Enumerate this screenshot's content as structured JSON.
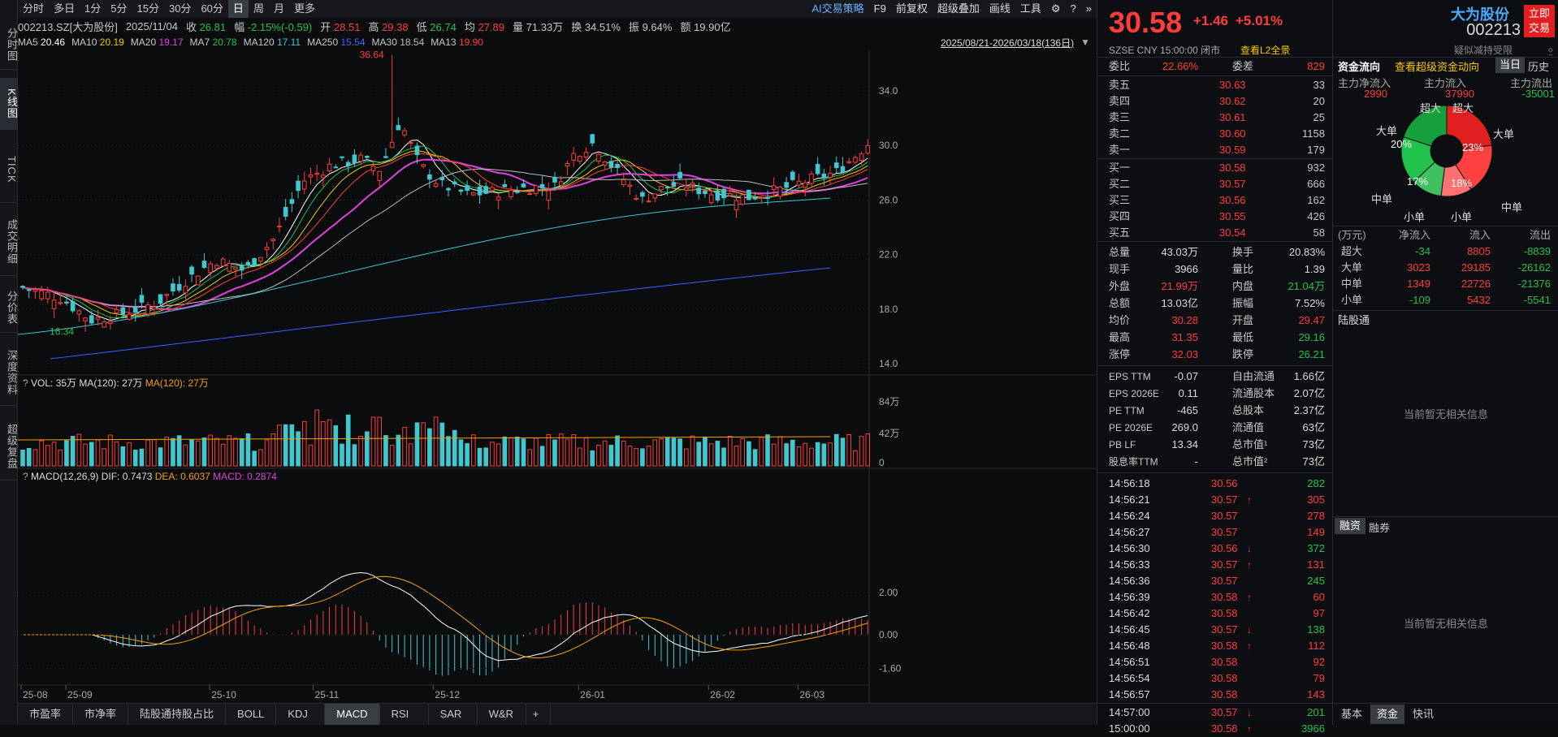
{
  "left_tabs": [
    "分时图",
    "K线图",
    "TICK",
    "成交明细",
    "分价表",
    "深度资料",
    "超级复盘"
  ],
  "periods": [
    "分时",
    "多日",
    "1分",
    "5分",
    "15分",
    "30分",
    "60分",
    "日",
    "周",
    "月",
    "更多"
  ],
  "active_period": "日",
  "tools": [
    "AI交易策略",
    "F9",
    "前复权",
    "超级叠加",
    "画线",
    "工具"
  ],
  "info": {
    "code": "002213.SZ[大为股份]",
    "date": "2025/11/04",
    "close_label": "收",
    "close": "26.81",
    "chg_label": "幅",
    "chg": "-2.15%(-0.59)",
    "open_label": "开",
    "open": "28.51",
    "high_label": "高",
    "high": "29.38",
    "low_label": "低",
    "low": "26.74",
    "avg_label": "均",
    "avg": "27.89",
    "vol_label": "量",
    "vol": "71.33万",
    "turn_label": "换",
    "turn": "34.51%",
    "amp_label": "振",
    "amp": "9.64%",
    "amt_label": "额",
    "amt": "19.90亿"
  },
  "ma_legend": [
    {
      "name": "MA5",
      "value": "20.46",
      "color": "#ffffff"
    },
    {
      "name": "MA10",
      "value": "20.19",
      "color": "#f5c800"
    },
    {
      "name": "MA20",
      "value": "19.17",
      "color": "#e040e0"
    },
    {
      "name": "MA7",
      "value": "20.78",
      "color": "#21c24c"
    },
    {
      "name": "MA120",
      "value": "17.11",
      "color": "#40c8d0"
    },
    {
      "name": "MA250",
      "value": "15.54",
      "color": "#4060ff"
    },
    {
      "name": "MA30",
      "value": "18.54",
      "color": "#bbbbbb"
    },
    {
      "name": "MA13",
      "value": "19.90",
      "color": "#ff3b3b"
    }
  ],
  "range_label": "2025/08/21-2026/03/18(136日)",
  "chart_data": {
    "type": "candlestick",
    "price_ticks": [
      "34.0",
      "30.0",
      "26.0",
      "22.0",
      "18.0",
      "14.0"
    ],
    "high_label": "36.64",
    "low_label": "16.34",
    "date_ticks": [
      "25-08",
      "25-09",
      "25-10",
      "25-11",
      "25-12",
      "26-01",
      "26-02",
      "26-03"
    ],
    "vol_legend": {
      "vol": "VOL: 35万",
      "ma": "MA(120): 27万",
      "ma2": "MA(120): 27万"
    },
    "vol_ticks": [
      "84万",
      "42万",
      "0"
    ],
    "macd_legend": {
      "title": "MACD(12,26,9)",
      "dif": "DIF: 0.7473",
      "dea": "DEA: 0.6037",
      "macd": "MACD: 0.2874"
    },
    "macd_ticks": [
      "2.00",
      "0.00",
      "-1.60"
    ]
  },
  "quote": {
    "price": "30.58",
    "chg": "+1.46",
    "pct": "+5.01%",
    "name": "大为股份",
    "code": "002213",
    "trade_btn": "立即交易",
    "sub": "SZSE  CNY  15:00:00  闭市",
    "l2": "查看L2全景",
    "hint": "疑似减持受限",
    "wb_label": "委比",
    "wb": "22.66%",
    "wc_label": "委差",
    "wc": "829",
    "asks": [
      {
        "l": "卖五",
        "p": "30.63",
        "v": "33"
      },
      {
        "l": "卖四",
        "p": "30.62",
        "v": "20"
      },
      {
        "l": "卖三",
        "p": "30.61",
        "v": "25"
      },
      {
        "l": "卖二",
        "p": "30.60",
        "v": "1158"
      },
      {
        "l": "卖一",
        "p": "30.59",
        "v": "179"
      }
    ],
    "bids": [
      {
        "l": "买一",
        "p": "30.58",
        "v": "932"
      },
      {
        "l": "买二",
        "p": "30.57",
        "v": "666"
      },
      {
        "l": "买三",
        "p": "30.56",
        "v": "162"
      },
      {
        "l": "买四",
        "p": "30.55",
        "v": "426"
      },
      {
        "l": "买五",
        "p": "30.54",
        "v": "58"
      }
    ],
    "stats": [
      {
        "a": "总量",
        "av": "43.03万",
        "b": "换手",
        "bv": "20.83%",
        "ac": "white",
        "bc": "white"
      },
      {
        "a": "现手",
        "av": "3966",
        "b": "量比",
        "bv": "1.39",
        "ac": "white",
        "bc": "white"
      },
      {
        "a": "外盘",
        "av": "21.99万",
        "b": "内盘",
        "bv": "21.04万",
        "ac": "red",
        "bc": "green"
      },
      {
        "a": "总额",
        "av": "13.03亿",
        "b": "振幅",
        "bv": "7.52%",
        "ac": "white",
        "bc": "white"
      },
      {
        "a": "均价",
        "av": "30.28",
        "b": "开盘",
        "bv": "29.47",
        "ac": "red",
        "bc": "red"
      },
      {
        "a": "最高",
        "av": "31.35",
        "b": "最低",
        "bv": "29.16",
        "ac": "red",
        "bc": "green"
      },
      {
        "a": "涨停",
        "av": "32.03",
        "b": "跌停",
        "bv": "26.21",
        "ac": "red",
        "bc": "green"
      }
    ],
    "fund": [
      {
        "a": "EPS TTM",
        "av": "-0.07",
        "b": "自由流通",
        "bv": "1.66亿"
      },
      {
        "a": "EPS 2026E",
        "av": "0.11",
        "b": "流通股本",
        "bv": "2.07亿"
      },
      {
        "a": "PE TTM",
        "av": "-465",
        "b": "总股本",
        "bv": "2.37亿"
      },
      {
        "a": "PE 2026E",
        "av": "269.0",
        "b": "流通值",
        "bv": "63亿"
      },
      {
        "a": "PB LF",
        "av": "13.34",
        "b": "总市值¹",
        "bv": "73亿"
      },
      {
        "a": "股息率TTM",
        "av": "-",
        "b": "总市值²",
        "bv": "73亿"
      }
    ],
    "ticks": [
      {
        "t": "14:56:18",
        "p": "30.56",
        "d": "",
        "v": "282",
        "pc": "red",
        "vc": "green"
      },
      {
        "t": "14:56:21",
        "p": "30.57",
        "d": "↑",
        "v": "305",
        "pc": "red",
        "vc": "red"
      },
      {
        "t": "14:56:24",
        "p": "30.57",
        "d": "",
        "v": "278",
        "pc": "red",
        "vc": "red"
      },
      {
        "t": "14:56:27",
        "p": "30.57",
        "d": "",
        "v": "149",
        "pc": "red",
        "vc": "red"
      },
      {
        "t": "14:56:30",
        "p": "30.56",
        "d": "↓",
        "v": "372",
        "pc": "red",
        "vc": "green"
      },
      {
        "t": "14:56:33",
        "p": "30.57",
        "d": "↑",
        "v": "131",
        "pc": "red",
        "vc": "red"
      },
      {
        "t": "14:56:36",
        "p": "30.57",
        "d": "",
        "v": "245",
        "pc": "red",
        "vc": "green"
      },
      {
        "t": "14:56:39",
        "p": "30.58",
        "d": "↑",
        "v": "60",
        "pc": "red",
        "vc": "red"
      },
      {
        "t": "14:56:42",
        "p": "30.58",
        "d": "",
        "v": "97",
        "pc": "red",
        "vc": "red"
      },
      {
        "t": "14:56:45",
        "p": "30.57",
        "d": "↓",
        "v": "138",
        "pc": "red",
        "vc": "green"
      },
      {
        "t": "14:56:48",
        "p": "30.58",
        "d": "↑",
        "v": "112",
        "pc": "red",
        "vc": "red"
      },
      {
        "t": "14:56:51",
        "p": "30.58",
        "d": "",
        "v": "92",
        "pc": "red",
        "vc": "red"
      },
      {
        "t": "14:56:54",
        "p": "30.58",
        "d": "",
        "v": "79",
        "pc": "red",
        "vc": "red"
      },
      {
        "t": "14:56:57",
        "p": "30.58",
        "d": "",
        "v": "143",
        "pc": "red",
        "vc": "red"
      },
      {
        "t": "14:57:00",
        "p": "30.57",
        "d": "↓",
        "v": "201",
        "pc": "red",
        "vc": "green"
      },
      {
        "t": "15:00:00",
        "p": "30.58",
        "d": "↑",
        "v": "3966",
        "pc": "red",
        "vc": "green"
      }
    ]
  },
  "flow": {
    "title": "资金流向",
    "link": "查看超级资金动向",
    "tab1": "当日",
    "tab2": "历史",
    "h1": "主力净流入",
    "h2": "主力流入",
    "h3": "主力流出",
    "v1": "2990",
    "v2": "37990",
    "v3": "-35001",
    "donut": {
      "in": [
        {
          "name": "超大",
          "pct": 23
        },
        {
          "name": "大单",
          "pct": 18
        }
      ],
      "out": [
        {
          "name": "中单",
          "pct": 17
        },
        {
          "name": "大单",
          "pct": 20
        }
      ],
      "labels": [
        "超大",
        "超大",
        "大单",
        "大单",
        "中单",
        "中单",
        "小单",
        "小单"
      ],
      "pct_labels": [
        "23%",
        "18%",
        "17%",
        "20%"
      ]
    },
    "table_head": [
      "(万元)",
      "净流入",
      "流入",
      "流出"
    ],
    "table": [
      {
        "n": "超大",
        "a": "-34",
        "b": "8805",
        "c": "-8839",
        "ac": "green"
      },
      {
        "n": "大单",
        "a": "3023",
        "b": "29185",
        "c": "-26162",
        "ac": "red"
      },
      {
        "n": "中单",
        "a": "1349",
        "b": "22726",
        "c": "-21376",
        "ac": "red"
      },
      {
        "n": "小单",
        "a": "-109",
        "b": "5432",
        "c": "-5541",
        "ac": "green"
      }
    ],
    "hk_label": "陆股通",
    "empty1": "当前暂无相关信息",
    "rz1": "融资",
    "rz2": "融券",
    "empty2": "当前暂无相关信息",
    "btabs": [
      "基本",
      "资金",
      "快讯"
    ]
  },
  "bottom_tabs": [
    "市盈率",
    "市净率",
    "陆股通持股占比",
    "BOLL",
    "KDJ",
    "MACD",
    "RSI",
    "SAR",
    "W&R",
    "+"
  ],
  "active_bottom": "MACD"
}
